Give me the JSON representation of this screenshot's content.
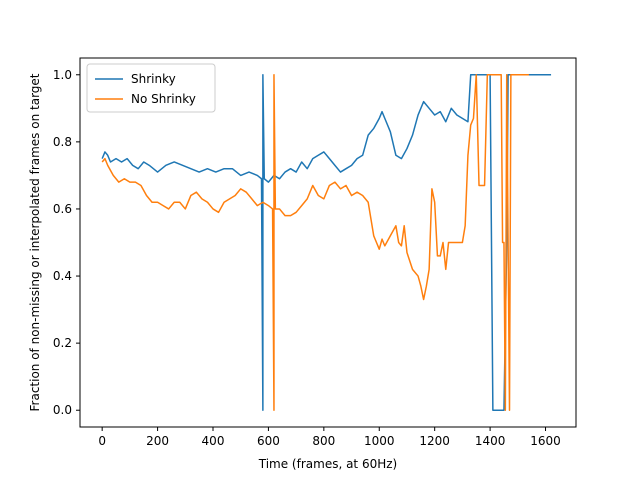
{
  "chart_data": {
    "type": "line",
    "title": "",
    "xlabel": "Time (frames, at 60Hz)",
    "ylabel": "Fraction of non-missing or interpolated frames on target",
    "xlim": [
      -80,
      1710
    ],
    "ylim": [
      -0.05,
      1.05
    ],
    "xticks": [
      0,
      200,
      400,
      600,
      800,
      1000,
      1200,
      1400,
      1600
    ],
    "yticks": [
      0.0,
      0.2,
      0.4,
      0.6,
      0.8,
      1.0
    ],
    "ytick_labels": [
      "0.0",
      "0.2",
      "0.4",
      "0.6",
      "0.8",
      "1.0"
    ],
    "grid": false,
    "legend_position": "upper-left",
    "series": [
      {
        "name": "Shrinky",
        "color": "#1f77b4",
        "points": [
          [
            0,
            0.75
          ],
          [
            10,
            0.77
          ],
          [
            20,
            0.76
          ],
          [
            30,
            0.74
          ],
          [
            50,
            0.75
          ],
          [
            70,
            0.74
          ],
          [
            90,
            0.75
          ],
          [
            110,
            0.73
          ],
          [
            130,
            0.72
          ],
          [
            150,
            0.74
          ],
          [
            170,
            0.73
          ],
          [
            200,
            0.71
          ],
          [
            230,
            0.73
          ],
          [
            260,
            0.74
          ],
          [
            290,
            0.73
          ],
          [
            320,
            0.72
          ],
          [
            350,
            0.71
          ],
          [
            380,
            0.72
          ],
          [
            410,
            0.71
          ],
          [
            440,
            0.72
          ],
          [
            470,
            0.72
          ],
          [
            500,
            0.7
          ],
          [
            530,
            0.71
          ],
          [
            560,
            0.7
          ],
          [
            575,
            0.69
          ],
          [
            580,
            0.0
          ],
          [
            580,
            1.0
          ],
          [
            585,
            0.69
          ],
          [
            600,
            0.68
          ],
          [
            620,
            0.7
          ],
          [
            640,
            0.69
          ],
          [
            660,
            0.71
          ],
          [
            680,
            0.72
          ],
          [
            700,
            0.71
          ],
          [
            720,
            0.74
          ],
          [
            740,
            0.72
          ],
          [
            760,
            0.75
          ],
          [
            780,
            0.76
          ],
          [
            800,
            0.77
          ],
          [
            820,
            0.75
          ],
          [
            840,
            0.73
          ],
          [
            860,
            0.71
          ],
          [
            880,
            0.72
          ],
          [
            900,
            0.73
          ],
          [
            920,
            0.75
          ],
          [
            940,
            0.76
          ],
          [
            960,
            0.82
          ],
          [
            980,
            0.84
          ],
          [
            1000,
            0.87
          ],
          [
            1010,
            0.89
          ],
          [
            1020,
            0.87
          ],
          [
            1040,
            0.83
          ],
          [
            1060,
            0.76
          ],
          [
            1080,
            0.75
          ],
          [
            1100,
            0.78
          ],
          [
            1120,
            0.82
          ],
          [
            1140,
            0.88
          ],
          [
            1160,
            0.92
          ],
          [
            1180,
            0.9
          ],
          [
            1200,
            0.88
          ],
          [
            1220,
            0.89
          ],
          [
            1240,
            0.86
          ],
          [
            1260,
            0.9
          ],
          [
            1280,
            0.88
          ],
          [
            1300,
            0.87
          ],
          [
            1320,
            0.86
          ],
          [
            1330,
            1.0
          ],
          [
            1380,
            1.0
          ],
          [
            1400,
            1.0
          ],
          [
            1410,
            0.0
          ],
          [
            1450,
            0.0
          ],
          [
            1460,
            0.5
          ],
          [
            1465,
            1.0
          ],
          [
            1620,
            1.0
          ]
        ]
      },
      {
        "name": "No Shrinky",
        "color": "#ff7f0e",
        "points": [
          [
            0,
            0.74
          ],
          [
            10,
            0.75
          ],
          [
            20,
            0.73
          ],
          [
            40,
            0.7
          ],
          [
            60,
            0.68
          ],
          [
            80,
            0.69
          ],
          [
            100,
            0.68
          ],
          [
            120,
            0.68
          ],
          [
            140,
            0.67
          ],
          [
            160,
            0.64
          ],
          [
            180,
            0.62
          ],
          [
            200,
            0.62
          ],
          [
            220,
            0.61
          ],
          [
            240,
            0.6
          ],
          [
            260,
            0.62
          ],
          [
            280,
            0.62
          ],
          [
            300,
            0.6
          ],
          [
            320,
            0.64
          ],
          [
            340,
            0.65
          ],
          [
            360,
            0.63
          ],
          [
            380,
            0.62
          ],
          [
            400,
            0.6
          ],
          [
            420,
            0.59
          ],
          [
            440,
            0.62
          ],
          [
            460,
            0.63
          ],
          [
            480,
            0.64
          ],
          [
            500,
            0.66
          ],
          [
            520,
            0.65
          ],
          [
            540,
            0.63
          ],
          [
            560,
            0.61
          ],
          [
            580,
            0.62
          ],
          [
            600,
            0.61
          ],
          [
            615,
            0.6
          ],
          [
            620,
            0.0
          ],
          [
            620,
            1.0
          ],
          [
            625,
            0.6
          ],
          [
            640,
            0.6
          ],
          [
            660,
            0.58
          ],
          [
            680,
            0.58
          ],
          [
            700,
            0.59
          ],
          [
            720,
            0.61
          ],
          [
            740,
            0.63
          ],
          [
            760,
            0.67
          ],
          [
            780,
            0.64
          ],
          [
            800,
            0.63
          ],
          [
            820,
            0.67
          ],
          [
            840,
            0.68
          ],
          [
            860,
            0.66
          ],
          [
            880,
            0.67
          ],
          [
            900,
            0.64
          ],
          [
            920,
            0.65
          ],
          [
            940,
            0.64
          ],
          [
            960,
            0.62
          ],
          [
            970,
            0.57
          ],
          [
            980,
            0.52
          ],
          [
            990,
            0.5
          ],
          [
            1000,
            0.48
          ],
          [
            1010,
            0.51
          ],
          [
            1020,
            0.49
          ],
          [
            1040,
            0.52
          ],
          [
            1060,
            0.55
          ],
          [
            1070,
            0.5
          ],
          [
            1080,
            0.49
          ],
          [
            1090,
            0.55
          ],
          [
            1100,
            0.47
          ],
          [
            1120,
            0.42
          ],
          [
            1140,
            0.4
          ],
          [
            1150,
            0.37
          ],
          [
            1160,
            0.33
          ],
          [
            1170,
            0.37
          ],
          [
            1180,
            0.42
          ],
          [
            1190,
            0.66
          ],
          [
            1200,
            0.62
          ],
          [
            1210,
            0.46
          ],
          [
            1220,
            0.46
          ],
          [
            1230,
            0.5
          ],
          [
            1240,
            0.42
          ],
          [
            1250,
            0.5
          ],
          [
            1300,
            0.5
          ],
          [
            1310,
            0.55
          ],
          [
            1320,
            0.76
          ],
          [
            1330,
            0.85
          ],
          [
            1340,
            0.87
          ],
          [
            1350,
            1.0
          ],
          [
            1360,
            0.67
          ],
          [
            1380,
            0.67
          ],
          [
            1390,
            1.0
          ],
          [
            1420,
            1.0
          ],
          [
            1440,
            1.0
          ],
          [
            1445,
            0.5
          ],
          [
            1450,
            0.5
          ],
          [
            1455,
            0.0
          ],
          [
            1460,
            1.0
          ],
          [
            1470,
            0.0
          ],
          [
            1475,
            1.0
          ],
          [
            1540,
            1.0
          ]
        ]
      }
    ]
  }
}
